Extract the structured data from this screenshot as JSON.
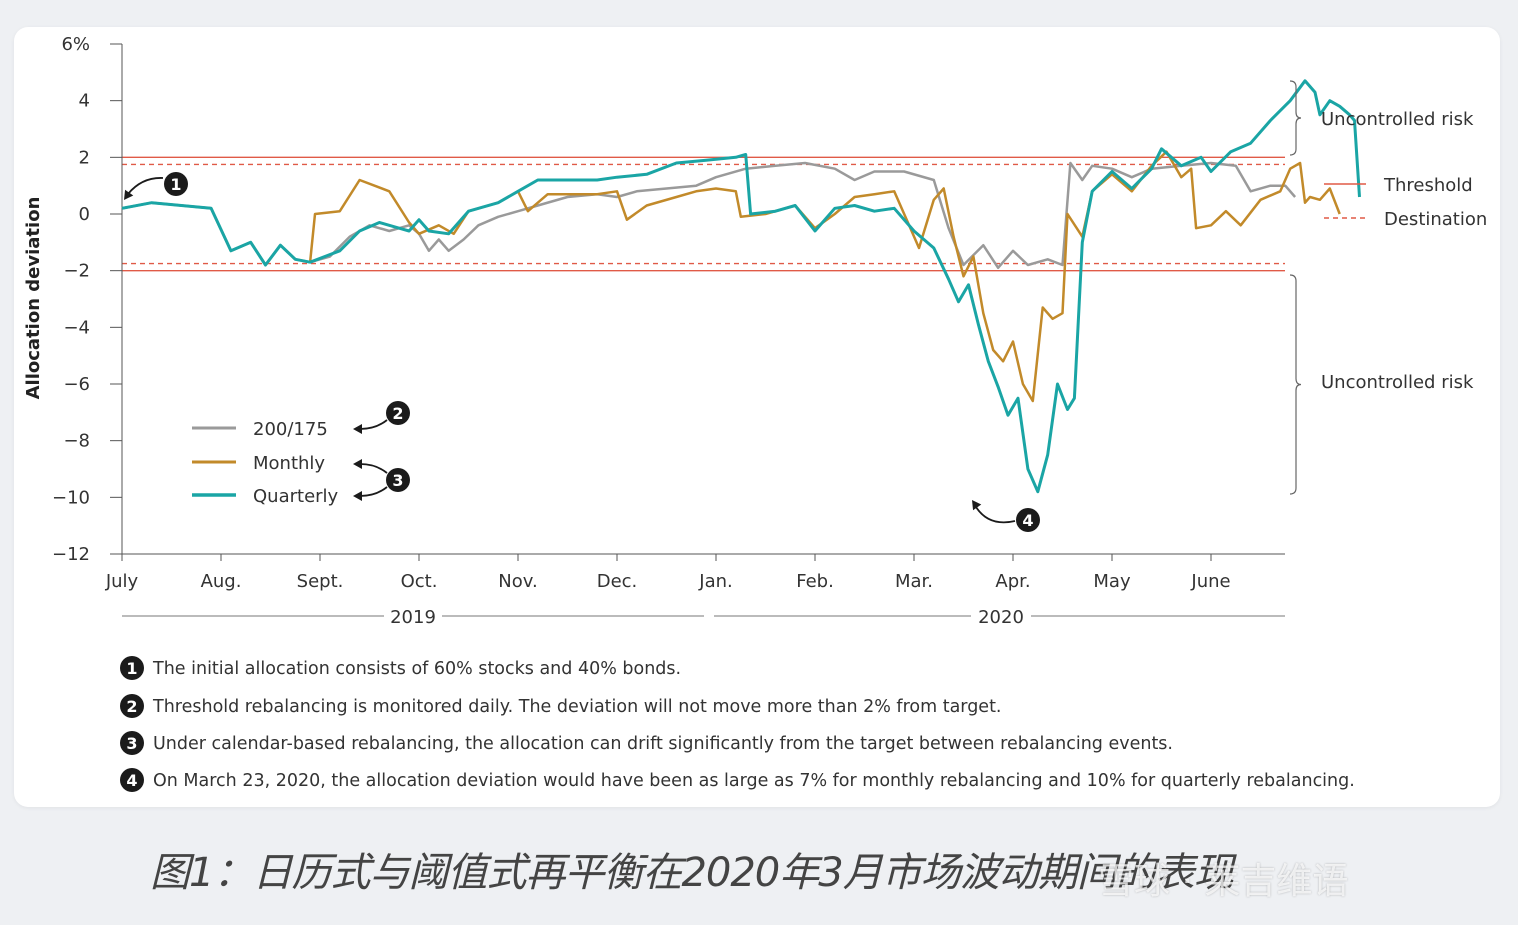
{
  "chart_data": {
    "type": "line",
    "ylabel": "Allocation deviation",
    "y_ticks": [
      "6%",
      "4",
      "2",
      "0",
      "−2",
      "−4",
      "−6",
      "−8",
      "−10",
      "−12"
    ],
    "ylim": [
      -12,
      6
    ],
    "x_tick_labels": [
      "July",
      "Aug.",
      "Sept.",
      "Oct.",
      "Nov.",
      "Dec.",
      "Jan.",
      "Feb.",
      "Mar.",
      "Apr.",
      "May",
      "June"
    ],
    "year_labels": [
      "2019",
      "2020"
    ],
    "threshold": {
      "label": "Threshold",
      "values": [
        2,
        -2
      ],
      "color": "#e05a47"
    },
    "destination": {
      "label": "Destination",
      "values": [
        1.75,
        -1.75
      ],
      "color": "#e05a47"
    },
    "risk_labels": [
      "Uncontrolled risk",
      "Uncontrolled risk"
    ],
    "series": [
      {
        "name": "200/175",
        "color": "#9a9a9a",
        "values": [
          [
            0,
            0.2
          ],
          [
            0.3,
            0.4
          ],
          [
            0.6,
            0.3
          ],
          [
            0.9,
            0.2
          ],
          [
            1.1,
            -1.3
          ],
          [
            1.3,
            -1.0
          ],
          [
            1.45,
            -1.8
          ],
          [
            1.6,
            -1.1
          ],
          [
            1.75,
            -1.6
          ],
          [
            1.9,
            -1.7
          ],
          [
            2.1,
            -1.5
          ],
          [
            2.3,
            -0.8
          ],
          [
            2.5,
            -0.4
          ],
          [
            2.7,
            -0.6
          ],
          [
            2.9,
            -0.4
          ],
          [
            3.0,
            -0.7
          ],
          [
            3.1,
            -1.3
          ],
          [
            3.2,
            -0.9
          ],
          [
            3.3,
            -1.3
          ],
          [
            3.45,
            -0.9
          ],
          [
            3.6,
            -0.4
          ],
          [
            3.8,
            -0.1
          ],
          [
            4.0,
            0.1
          ],
          [
            4.2,
            0.3
          ],
          [
            4.5,
            0.6
          ],
          [
            4.8,
            0.7
          ],
          [
            5.0,
            0.6
          ],
          [
            5.2,
            0.8
          ],
          [
            5.5,
            0.9
          ],
          [
            5.8,
            1.0
          ],
          [
            6.0,
            1.3
          ],
          [
            6.3,
            1.6
          ],
          [
            6.6,
            1.7
          ],
          [
            6.9,
            1.8
          ],
          [
            7.2,
            1.6
          ],
          [
            7.4,
            1.2
          ],
          [
            7.6,
            1.5
          ],
          [
            7.9,
            1.5
          ],
          [
            8.2,
            1.2
          ],
          [
            8.35,
            -0.5
          ],
          [
            8.5,
            -1.8
          ],
          [
            8.7,
            -1.1
          ],
          [
            8.85,
            -1.9
          ],
          [
            9.0,
            -1.3
          ],
          [
            9.15,
            -1.8
          ],
          [
            9.35,
            -1.6
          ],
          [
            9.5,
            -1.8
          ],
          [
            9.58,
            1.8
          ],
          [
            9.7,
            1.2
          ],
          [
            9.8,
            1.7
          ],
          [
            10.0,
            1.6
          ],
          [
            10.2,
            1.3
          ],
          [
            10.4,
            1.6
          ],
          [
            10.7,
            1.7
          ],
          [
            11.0,
            1.8
          ],
          [
            11.25,
            1.7
          ],
          [
            11.4,
            0.8
          ],
          [
            11.6,
            1.0
          ],
          [
            11.75,
            1.0
          ],
          [
            11.85,
            0.6
          ]
        ]
      },
      {
        "name": "Monthly",
        "color": "#c28a2a",
        "values": [
          [
            0,
            0.2
          ],
          [
            0.3,
            0.4
          ],
          [
            0.6,
            0.3
          ],
          [
            0.9,
            0.2
          ],
          [
            1.1,
            -1.3
          ],
          [
            1.3,
            -1.0
          ],
          [
            1.45,
            -1.8
          ],
          [
            1.6,
            -1.1
          ],
          [
            1.75,
            -1.6
          ],
          [
            1.9,
            -1.7
          ],
          [
            1.95,
            0.0
          ],
          [
            2.2,
            0.1
          ],
          [
            2.4,
            1.2
          ],
          [
            2.7,
            0.8
          ],
          [
            2.9,
            -0.3
          ],
          [
            3.0,
            -0.7
          ],
          [
            3.2,
            -0.4
          ],
          [
            3.35,
            -0.7
          ],
          [
            3.5,
            0.1
          ],
          [
            3.8,
            0.4
          ],
          [
            4.0,
            0.8
          ],
          [
            4.1,
            0.1
          ],
          [
            4.3,
            0.7
          ],
          [
            4.6,
            0.7
          ],
          [
            4.8,
            0.7
          ],
          [
            5.0,
            0.8
          ],
          [
            5.1,
            -0.2
          ],
          [
            5.3,
            0.3
          ],
          [
            5.6,
            0.6
          ],
          [
            5.8,
            0.8
          ],
          [
            6.0,
            0.9
          ],
          [
            6.2,
            0.8
          ],
          [
            6.25,
            -0.1
          ],
          [
            6.5,
            0.0
          ],
          [
            6.8,
            0.3
          ],
          [
            7.0,
            -0.5
          ],
          [
            7.2,
            0.0
          ],
          [
            7.4,
            0.6
          ],
          [
            7.6,
            0.7
          ],
          [
            7.8,
            0.8
          ],
          [
            7.95,
            -0.4
          ],
          [
            8.05,
            -1.2
          ],
          [
            8.2,
            0.5
          ],
          [
            8.3,
            0.9
          ],
          [
            8.4,
            -0.8
          ],
          [
            8.5,
            -2.2
          ],
          [
            8.6,
            -1.5
          ],
          [
            8.7,
            -3.5
          ],
          [
            8.8,
            -4.8
          ],
          [
            8.9,
            -5.2
          ],
          [
            9.0,
            -4.5
          ],
          [
            9.1,
            -6.0
          ],
          [
            9.2,
            -6.6
          ],
          [
            9.3,
            -3.3
          ],
          [
            9.4,
            -3.7
          ],
          [
            9.5,
            -3.5
          ],
          [
            9.55,
            0.0
          ],
          [
            9.7,
            -0.8
          ],
          [
            9.8,
            0.8
          ],
          [
            10.0,
            1.4
          ],
          [
            10.2,
            0.8
          ],
          [
            10.4,
            1.7
          ],
          [
            10.55,
            2.2
          ],
          [
            10.7,
            1.3
          ],
          [
            10.8,
            1.6
          ],
          [
            10.85,
            -0.5
          ],
          [
            11.0,
            -0.4
          ],
          [
            11.15,
            0.1
          ],
          [
            11.3,
            -0.4
          ],
          [
            11.5,
            0.5
          ],
          [
            11.7,
            0.8
          ],
          [
            11.8,
            1.6
          ],
          [
            11.9,
            1.8
          ],
          [
            11.95,
            0.4
          ],
          [
            12.0,
            0.6
          ],
          [
            12.1,
            0.5
          ],
          [
            12.2,
            0.9
          ],
          [
            12.3,
            0.0
          ]
        ]
      },
      {
        "name": "Quarterly",
        "color": "#1aa5a5",
        "values": [
          [
            0,
            0.2
          ],
          [
            0.3,
            0.4
          ],
          [
            0.6,
            0.3
          ],
          [
            0.9,
            0.2
          ],
          [
            1.1,
            -1.3
          ],
          [
            1.3,
            -1.0
          ],
          [
            1.45,
            -1.8
          ],
          [
            1.6,
            -1.1
          ],
          [
            1.75,
            -1.6
          ],
          [
            1.9,
            -1.7
          ],
          [
            2.2,
            -1.3
          ],
          [
            2.4,
            -0.6
          ],
          [
            2.6,
            -0.3
          ],
          [
            2.8,
            -0.5
          ],
          [
            2.9,
            -0.6
          ],
          [
            3.0,
            -0.2
          ],
          [
            3.1,
            -0.6
          ],
          [
            3.3,
            -0.7
          ],
          [
            3.5,
            0.1
          ],
          [
            3.8,
            0.4
          ],
          [
            4.0,
            0.8
          ],
          [
            4.2,
            1.2
          ],
          [
            4.5,
            1.2
          ],
          [
            4.8,
            1.2
          ],
          [
            5.0,
            1.3
          ],
          [
            5.3,
            1.4
          ],
          [
            5.6,
            1.8
          ],
          [
            5.9,
            1.9
          ],
          [
            6.2,
            2.0
          ],
          [
            6.3,
            2.1
          ],
          [
            6.35,
            0.0
          ],
          [
            6.6,
            0.1
          ],
          [
            6.8,
            0.3
          ],
          [
            7.0,
            -0.6
          ],
          [
            7.2,
            0.2
          ],
          [
            7.4,
            0.3
          ],
          [
            7.6,
            0.1
          ],
          [
            7.8,
            0.2
          ],
          [
            8.0,
            -0.6
          ],
          [
            8.2,
            -1.2
          ],
          [
            8.35,
            -2.3
          ],
          [
            8.45,
            -3.1
          ],
          [
            8.55,
            -2.5
          ],
          [
            8.65,
            -3.9
          ],
          [
            8.75,
            -5.2
          ],
          [
            8.85,
            -6.1
          ],
          [
            8.95,
            -7.1
          ],
          [
            9.05,
            -6.5
          ],
          [
            9.15,
            -9.0
          ],
          [
            9.25,
            -9.8
          ],
          [
            9.35,
            -8.5
          ],
          [
            9.45,
            -6.0
          ],
          [
            9.55,
            -6.9
          ],
          [
            9.62,
            -6.5
          ],
          [
            9.7,
            -1.0
          ],
          [
            9.8,
            0.8
          ],
          [
            10.0,
            1.5
          ],
          [
            10.2,
            0.9
          ],
          [
            10.4,
            1.6
          ],
          [
            10.5,
            2.3
          ],
          [
            10.7,
            1.7
          ],
          [
            10.9,
            2.0
          ],
          [
            11.0,
            1.5
          ],
          [
            11.2,
            2.2
          ],
          [
            11.4,
            2.5
          ],
          [
            11.6,
            3.3
          ],
          [
            11.8,
            4.0
          ],
          [
            11.95,
            4.7
          ],
          [
            12.05,
            4.3
          ],
          [
            12.1,
            3.5
          ],
          [
            12.2,
            4.0
          ],
          [
            12.3,
            3.8
          ],
          [
            12.4,
            3.5
          ],
          [
            12.45,
            3.3
          ],
          [
            12.5,
            0.6
          ]
        ]
      }
    ],
    "callouts": [
      "1",
      "2",
      "3",
      "4"
    ]
  },
  "notes": [
    {
      "num": "1",
      "text": "The initial allocation consists of 60% stocks and 40% bonds."
    },
    {
      "num": "2",
      "text": "Threshold rebalancing is monitored daily. The deviation will not move more than 2% from target."
    },
    {
      "num": "3",
      "text": "Under calendar-based rebalancing, the allocation can drift significantly from the target between rebalancing events."
    },
    {
      "num": "4",
      "text": "On March 23, 2020, the allocation deviation would have been as large as 7% for monthly rebalancing and 10% for quarterly rebalancing."
    }
  ],
  "caption": "图1：日历式与阈值式再平衡在2020年3月市场波动期间的表现",
  "watermark": "雪球 · 莱吉维语"
}
